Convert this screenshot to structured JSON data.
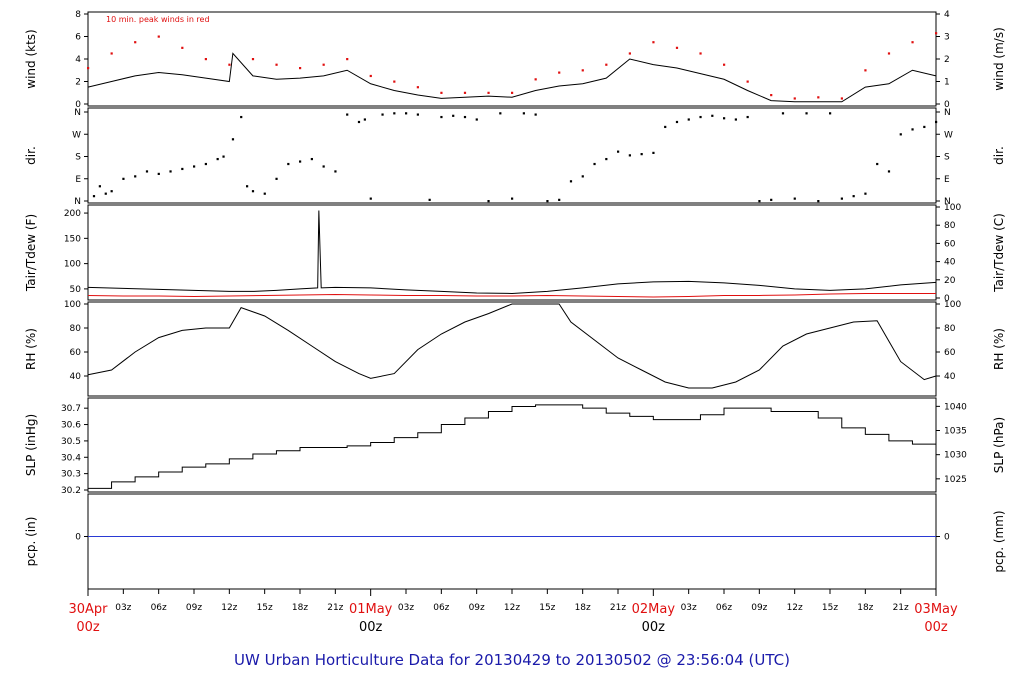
{
  "chart_data": {
    "type": "line",
    "title": "UW Urban Horticulture Data for 20130429  to  20130502 @ 23:56:04  (UTC)",
    "x_axis": {
      "hour_ticks": [
        "03z",
        "06z",
        "09z",
        "12z",
        "15z",
        "18z",
        "21z"
      ],
      "day_labels": [
        {
          "date": "30Apr",
          "hour": "00z"
        },
        {
          "date": "01May",
          "hour": "00z"
        },
        {
          "date": "02May",
          "hour": "00z"
        },
        {
          "date": "03May",
          "hour": "00z"
        }
      ],
      "range_hours": [
        0,
        72
      ]
    },
    "panels": [
      {
        "id": "wind",
        "ylabel_left": "wind (kts)",
        "ylabel_right": "wind (m/s)",
        "ylim": [
          0,
          8
        ],
        "left_ticks": [
          "0",
          "2",
          "4",
          "6",
          "8"
        ],
        "right_ticks": [
          "0",
          "1",
          "2",
          "3",
          "4"
        ],
        "annotation": "10 min. peak winds in red",
        "series": [
          {
            "color": "#000000",
            "kind": "line",
            "hours": [
              0,
              2,
              4,
              6,
              8,
              10,
              12,
              12.3,
              14,
              16,
              18,
              20,
              22,
              24,
              26,
              28,
              30,
              32,
              34,
              36,
              38,
              40,
              42,
              44,
              46,
              48,
              50,
              52,
              54,
              56,
              58,
              60,
              62,
              64,
              66,
              68,
              70,
              72
            ],
            "values": [
              1.5,
              2,
              2.5,
              2.8,
              2.6,
              2.3,
              2,
              4.5,
              2.5,
              2.2,
              2.3,
              2.5,
              3,
              1.8,
              1.2,
              0.8,
              0.5,
              0.6,
              0.7,
              0.6,
              1.2,
              1.6,
              1.8,
              2.3,
              4,
              3.5,
              3.2,
              2.7,
              2.2,
              1.2,
              0.3,
              0.2,
              0.2,
              0.2,
              1.5,
              1.8,
              3,
              2.5
            ]
          },
          {
            "color": "#e01010",
            "kind": "points",
            "hours": [
              0,
              2,
              4,
              6,
              8,
              10,
              12,
              14,
              16,
              18,
              20,
              22,
              24,
              26,
              28,
              30,
              32,
              34,
              36,
              38,
              40,
              42,
              44,
              46,
              48,
              50,
              52,
              54,
              56,
              58,
              60,
              62,
              64,
              66,
              68,
              70,
              72
            ],
            "values": [
              3.2,
              4.5,
              5.5,
              6,
              5,
              4,
              3.5,
              4,
              3.5,
              3.2,
              3.5,
              4,
              2.5,
              2,
              1.5,
              1,
              1,
              1,
              1,
              2.2,
              2.8,
              3,
              3.5,
              4.5,
              5.5,
              5,
              4.5,
              3.5,
              2,
              0.8,
              0.5,
              0.6,
              0.5,
              3,
              4.5,
              5.5,
              6.3
            ]
          }
        ]
      },
      {
        "id": "dir",
        "ylabel_left": "dir.",
        "ylabel_right": "dir.",
        "ylim": [
          0,
          360
        ],
        "left_ticks": [
          "N",
          "E",
          "S",
          "W",
          "N"
        ],
        "right_ticks": [
          "N",
          "E",
          "S",
          "W",
          "N"
        ],
        "series": [
          {
            "color": "#000000",
            "kind": "points",
            "hours": [
              0.5,
              1,
              1.5,
              2,
              3,
              4,
              5,
              6,
              7,
              8,
              9,
              10,
              11,
              11.5,
              12.3,
              13,
              13.5,
              14,
              15,
              16,
              17,
              18,
              19,
              20,
              21,
              22,
              23,
              23.5,
              24,
              25,
              26,
              27,
              28,
              29,
              30,
              31,
              32,
              33,
              34,
              35,
              36,
              37,
              38,
              39,
              40,
              41,
              42,
              43,
              44,
              45,
              46,
              47,
              48,
              49,
              50,
              51,
              52,
              53,
              54,
              55,
              56,
              57,
              58,
              59,
              60,
              61,
              62,
              63,
              64,
              65,
              66,
              67,
              68,
              69,
              70,
              71,
              72
            ],
            "values": [
              20,
              60,
              30,
              40,
              90,
              100,
              120,
              110,
              120,
              130,
              140,
              150,
              170,
              180,
              250,
              340,
              60,
              40,
              30,
              90,
              150,
              160,
              170,
              140,
              120,
              350,
              320,
              330,
              10,
              350,
              355,
              355,
              350,
              5,
              340,
              345,
              340,
              330,
              0,
              355,
              10,
              355,
              350,
              0,
              5,
              80,
              100,
              150,
              170,
              200,
              185,
              190,
              195,
              300,
              320,
              330,
              340,
              345,
              335,
              330,
              340,
              0,
              5,
              355,
              10,
              355,
              0,
              355,
              10,
              20,
              30,
              150,
              120,
              270,
              290,
              300,
              320
            ]
          }
        ]
      },
      {
        "id": "temp",
        "ylabel_left": "Tair/Tdew (F)",
        "ylabel_right": "Tair/Tdew (C)",
        "ylim": [
          32,
          212
        ],
        "left_ticks": [
          "50",
          "100",
          "150",
          "200"
        ],
        "right_ticks": [
          "0",
          "20",
          "40",
          "60",
          "80",
          "100"
        ],
        "series": [
          {
            "color": "#000000",
            "kind": "line",
            "hours": [
              0,
              3,
              6,
              9,
              12,
              14,
              16,
              18,
              19.5,
              19.6,
              19.8,
              21,
              24,
              27,
              30,
              33,
              36,
              39,
              42,
              45,
              48,
              51,
              54,
              57,
              60,
              63,
              66,
              69,
              72
            ],
            "values": [
              53,
              51,
              49,
              47,
              45,
              45,
              47,
              50,
              52,
              205,
              52,
              53,
              52,
              48,
              45,
              42,
              41,
              45,
              52,
              60,
              64,
              65,
              62,
              57,
              50,
              47,
              50,
              58,
              63
            ]
          },
          {
            "color": "#e01010",
            "kind": "line",
            "hours": [
              0,
              3,
              6,
              9,
              12,
              15,
              18,
              21,
              24,
              27,
              30,
              33,
              36,
              39,
              42,
              45,
              48,
              51,
              54,
              57,
              60,
              63,
              66,
              69,
              72
            ],
            "values": [
              37,
              36,
              36,
              35,
              36,
              37,
              38,
              39,
              38,
              37,
              37,
              36,
              36,
              37,
              36,
              35,
              34,
              35,
              37,
              37,
              38,
              40,
              41,
              41,
              41
            ]
          }
        ]
      },
      {
        "id": "rh",
        "ylabel_left": "RH (%)",
        "ylabel_right": "RH (%)",
        "ylim": [
          25,
          100
        ],
        "left_ticks": [
          "40",
          "60",
          "80",
          "100"
        ],
        "right_ticks": [
          "40",
          "60",
          "80",
          "100"
        ],
        "series": [
          {
            "color": "#000000",
            "kind": "line",
            "hours": [
              0,
              2,
              4,
              6,
              8,
              10,
              12,
              13,
              15,
              17,
              19,
              21,
              23,
              24,
              26,
              28,
              30,
              32,
              34,
              36,
              38,
              40,
              41,
              43,
              45,
              47,
              49,
              51,
              53,
              55,
              57,
              59,
              61,
              63,
              65,
              67,
              69,
              71,
              72
            ],
            "values": [
              41,
              45,
              60,
              72,
              78,
              80,
              80,
              97,
              90,
              78,
              65,
              52,
              42,
              38,
              42,
              62,
              75,
              85,
              92,
              100,
              100,
              100,
              85,
              70,
              55,
              45,
              35,
              30,
              30,
              35,
              45,
              65,
              75,
              80,
              85,
              86,
              52,
              37,
              40
            ]
          }
        ]
      },
      {
        "id": "slp",
        "ylabel_left": "SLP (inHg)",
        "ylabel_right": "SLP (hPa)",
        "ylim": [
          30.2,
          30.75
        ],
        "left_ticks": [
          "30.2",
          "30.3",
          "30.4",
          "30.5",
          "30.6",
          "30.7"
        ],
        "right_ticks": [
          "1025",
          "1030",
          "1035",
          "1040"
        ],
        "series": [
          {
            "color": "#000000",
            "kind": "step",
            "hours": [
              0,
              2,
              4,
              6,
              8,
              10,
              12,
              14,
              16,
              18,
              20,
              22,
              24,
              26,
              28,
              30,
              32,
              34,
              36,
              38,
              40,
              42,
              44,
              46,
              48,
              50,
              52,
              54,
              56,
              58,
              60,
              62,
              64,
              66,
              68,
              70,
              72
            ],
            "values": [
              30.21,
              30.25,
              30.28,
              30.31,
              30.34,
              30.36,
              30.39,
              30.42,
              30.44,
              30.46,
              30.46,
              30.47,
              30.49,
              30.52,
              30.55,
              30.6,
              30.64,
              30.68,
              30.71,
              30.72,
              30.72,
              30.7,
              30.67,
              30.65,
              30.63,
              30.63,
              30.66,
              30.7,
              30.7,
              30.68,
              30.68,
              30.64,
              30.58,
              30.54,
              30.5,
              30.48,
              30.48
            ]
          }
        ]
      },
      {
        "id": "pcp",
        "ylabel_left": "pcp. (in)",
        "ylabel_right": "pcp. (mm)",
        "left_ticks": [
          "0"
        ],
        "right_ticks": [
          "0"
        ],
        "series": [
          {
            "color": "#2a3ad4",
            "kind": "line",
            "hours": [
              0,
              72
            ],
            "values": [
              0,
              0
            ]
          }
        ]
      }
    ]
  }
}
